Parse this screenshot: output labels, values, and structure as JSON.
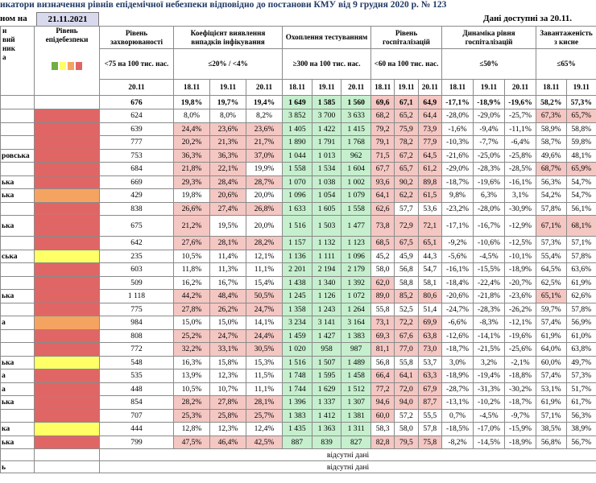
{
  "header": {
    "title": "икатори визначення рівнів епідемічної небезпеки відповідно до постанови КМУ від 9 грудня 2020 р. № 123",
    "date_label": "ном на",
    "date": "21.11.2021",
    "available": "Дані доступні за 20.11."
  },
  "table": {
    "region_header": [
      "и",
      "вий",
      "ник",
      "а"
    ],
    "level_header": "Рівень епідебезпеки",
    "level_legend_colors": [
      "#70ad47",
      "#ffff66",
      "#f4a460",
      "#e06666"
    ],
    "groups": [
      {
        "title": "Рівень захворюваності",
        "threshold": "<75 на 100 тис. нас.",
        "dates": [
          "20.11"
        ]
      },
      {
        "title": "Коефіцієнт виявлення випадків інфікування",
        "threshold": "≤20% / <4%",
        "dates": [
          "18.11",
          "19.11",
          "20.11"
        ],
        "limit": 20,
        "fail_color": "#f4c7c3"
      },
      {
        "title": "Охоплення тестуванням",
        "threshold": "≥300 на 100 тис. нас.",
        "dates": [
          "18.11",
          "19.11",
          "20.11"
        ],
        "limit": 300,
        "ok_color": "#c6efce"
      },
      {
        "title": "Рівень госпіталізацій",
        "threshold": "<60 на 100 тис. нас.",
        "dates": [
          "18.11",
          "19.11",
          "20.11"
        ],
        "limit": 60,
        "fail_color": "#f4c7c3"
      },
      {
        "title": "Динаміка рівня госпіталізацій",
        "threshold": "≤50%",
        "dates": [
          "18.11",
          "19.11",
          "20.11"
        ]
      },
      {
        "title": "Завантаженість з кисне",
        "threshold": "≤65%",
        "dates": [
          "18.11",
          "19.11"
        ],
        "limit": 65,
        "fail_color": "#f4c7c3"
      }
    ],
    "total": {
      "values": [
        "676",
        "19,8%",
        "19,7%",
        "19,4%",
        "1 649",
        "1 585",
        "1 560",
        "69,6",
        "67,1",
        "64,9",
        "-17,1%",
        "-18,9%",
        "-19,6%",
        "58,2%",
        "57,3%"
      ]
    },
    "rows": [
      {
        "level_color": "#e06666",
        "values": [
          "624",
          "8,0%",
          "8,0%",
          "8,2%",
          "3 852",
          "3 700",
          "3 633",
          "68,2",
          "65,2",
          "64,4",
          "-28,0%",
          "-29,0%",
          "-25,7%",
          "67,3%",
          "65,7%"
        ]
      },
      {
        "level_color": "#e06666",
        "values": [
          "639",
          "24,4%",
          "23,6%",
          "23,6%",
          "1 405",
          "1 422",
          "1 415",
          "79,2",
          "75,9",
          "73,9",
          "-1,6%",
          "-9,4%",
          "-11,1%",
          "58,9%",
          "58,8%"
        ]
      },
      {
        "level_color": "#e06666",
        "values": [
          "777",
          "20,2%",
          "21,3%",
          "21,7%",
          "1 890",
          "1 791",
          "1 768",
          "79,1",
          "78,2",
          "77,9",
          "-10,3%",
          "-7,7%",
          "-6,4%",
          "58,7%",
          "59,8%"
        ]
      },
      {
        "name": "ровська",
        "level_color": "#e06666",
        "values": [
          "753",
          "36,3%",
          "36,3%",
          "37,0%",
          "1 044",
          "1 013",
          "962",
          "71,5",
          "67,2",
          "64,5",
          "-21,6%",
          "-25,0%",
          "-25,8%",
          "49,6%",
          "48,1%"
        ]
      },
      {
        "level_color": "#e06666",
        "values": [
          "684",
          "21,8%",
          "22,1%",
          "19,9%",
          "1 558",
          "1 534",
          "1 604",
          "67,7",
          "65,7",
          "61,2",
          "-29,0%",
          "-28,3%",
          "-28,5%",
          "68,7%",
          "65,9%"
        ]
      },
      {
        "name": "ька",
        "level_color": "#e06666",
        "values": [
          "669",
          "29,3%",
          "28,4%",
          "28,7%",
          "1 070",
          "1 038",
          "1 002",
          "93,6",
          "90,2",
          "89,8",
          "-18,7%",
          "-19,6%",
          "-16,1%",
          "56,3%",
          "54,7%"
        ]
      },
      {
        "name": "ька",
        "level_color": "#f4a460",
        "values": [
          "429",
          "19,8%",
          "20,6%",
          "20,0%",
          "1 096",
          "1 054",
          "1 079",
          "64,1",
          "62,2",
          "61,5",
          "9,8%",
          "6,3%",
          "3,1%",
          "54,2%",
          "54,7%"
        ]
      },
      {
        "level_color": "#e06666",
        "values": [
          "838",
          "26,6%",
          "27,4%",
          "26,8%",
          "1 633",
          "1 605",
          "1 558",
          "62,6",
          "57,7",
          "53,6",
          "-23,2%",
          "-28,0%",
          "-30,9%",
          "57,8%",
          "56,1%"
        ]
      },
      {
        "name": "ька",
        "level_color": "#e06666",
        "values": [
          "675",
          "21,2%",
          "19,5%",
          "20,0%",
          "1 516",
          "1 503",
          "1 477",
          "73,8",
          "72,9",
          "72,1",
          "-17,1%",
          "-16,7%",
          "-12,9%",
          "67,1%",
          "68,1%"
        ]
      },
      {
        "level_color": "#e06666",
        "values": [
          "642",
          "27,6%",
          "28,1%",
          "28,2%",
          "1 157",
          "1 132",
          "1 123",
          "68,5",
          "67,5",
          "65,1",
          "-9,2%",
          "-10,6%",
          "-12,5%",
          "57,3%",
          "57,1%"
        ]
      },
      {
        "name": "ська",
        "level_color": "#ffff66",
        "values": [
          "235",
          "10,5%",
          "11,4%",
          "12,1%",
          "1 136",
          "1 111",
          "1 096",
          "45,2",
          "45,9",
          "44,3",
          "-5,6%",
          "-4,5%",
          "-10,1%",
          "55,4%",
          "57,8%"
        ]
      },
      {
        "level_color": "#e06666",
        "values": [
          "603",
          "11,8%",
          "11,3%",
          "11,1%",
          "2 201",
          "2 194",
          "2 179",
          "58,0",
          "56,8",
          "54,7",
          "-16,1%",
          "-15,5%",
          "-18,9%",
          "64,5%",
          "63,6%"
        ]
      },
      {
        "level_color": "#e06666",
        "values": [
          "509",
          "16,2%",
          "16,7%",
          "15,4%",
          "1 438",
          "1 340",
          "1 392",
          "62,0",
          "58,8",
          "58,1",
          "-18,4%",
          "-22,4%",
          "-20,7%",
          "62,5%",
          "61,9%"
        ]
      },
      {
        "name": "ька",
        "level_color": "#e06666",
        "values": [
          "1 118",
          "44,2%",
          "48,4%",
          "50,5%",
          "1 245",
          "1 126",
          "1 072",
          "89,0",
          "85,2",
          "80,6",
          "-20,6%",
          "-21,8%",
          "-23,6%",
          "65,1%",
          "62,6%"
        ]
      },
      {
        "level_color": "#e06666",
        "values": [
          "775",
          "27,8%",
          "26,2%",
          "24,7%",
          "1 358",
          "1 243",
          "1 264",
          "55,8",
          "52,5",
          "51,4",
          "-24,7%",
          "-28,3%",
          "-26,2%",
          "59,7%",
          "57,8%"
        ]
      },
      {
        "name": "а",
        "level_color": "#f4a460",
        "values": [
          "984",
          "15,0%",
          "15,0%",
          "14,1%",
          "3 234",
          "3 141",
          "3 164",
          "73,1",
          "72,2",
          "69,9",
          "-6,6%",
          "-8,3%",
          "-12,1%",
          "57,4%",
          "56,9%"
        ]
      },
      {
        "level_color": "#e06666",
        "values": [
          "808",
          "25,2%",
          "24,7%",
          "24,4%",
          "1 459",
          "1 427",
          "1 383",
          "69,3",
          "67,6",
          "63,8",
          "-12,6%",
          "-14,1%",
          "-19,6%",
          "61,9%",
          "61,0%"
        ]
      },
      {
        "level_color": "#e06666",
        "values": [
          "772",
          "32,2%",
          "33,1%",
          "30,5%",
          "1 020",
          "958",
          "987",
          "81,1",
          "77,0",
          "73,0",
          "-18,7%",
          "-21,5%",
          "-25,6%",
          "64,0%",
          "63,8%"
        ]
      },
      {
        "name": "ька",
        "level_color": "#ffff66",
        "values": [
          "548",
          "16,3%",
          "15,8%",
          "15,3%",
          "1 516",
          "1 507",
          "1 489",
          "56,8",
          "55,8",
          "53,7",
          "3,0%",
          "3,2%",
          "-2,1%",
          "60,0%",
          "49,7%"
        ]
      },
      {
        "name": "а",
        "level_color": "#e06666",
        "values": [
          "535",
          "13,9%",
          "12,3%",
          "11,5%",
          "1 748",
          "1 595",
          "1 458",
          "66,4",
          "64,1",
          "63,3",
          "-18,9%",
          "-19,4%",
          "-18,8%",
          "57,4%",
          "57,3%"
        ]
      },
      {
        "name": "а",
        "level_color": "#e06666",
        "values": [
          "448",
          "10,5%",
          "10,7%",
          "11,1%",
          "1 744",
          "1 629",
          "1 512",
          "77,2",
          "72,0",
          "67,9",
          "-28,7%",
          "-31,3%",
          "-30,2%",
          "53,1%",
          "51,7%"
        ]
      },
      {
        "name": "ька",
        "level_color": "#e06666",
        "values": [
          "854",
          "28,2%",
          "27,8%",
          "28,1%",
          "1 396",
          "1 337",
          "1 307",
          "94,6",
          "94,0",
          "87,7",
          "-13,1%",
          "-10,2%",
          "-18,7%",
          "61,9%",
          "61,7%"
        ]
      },
      {
        "level_color": "#e06666",
        "values": [
          "707",
          "25,3%",
          "25,8%",
          "25,7%",
          "1 383",
          "1 412",
          "1 381",
          "60,0",
          "57,2",
          "55,5",
          "0,7%",
          "-4,5%",
          "-9,7%",
          "57,1%",
          "56,3%"
        ]
      },
      {
        "name": "ка",
        "level_color": "#ffff66",
        "values": [
          "444",
          "12,8%",
          "12,3%",
          "12,4%",
          "1 435",
          "1 363",
          "1 311",
          "58,3",
          "58,0",
          "57,8",
          "-18,5%",
          "-17,0%",
          "-15,9%",
          "38,5%",
          "38,9%"
        ]
      },
      {
        "name": "ька",
        "level_color": "#e06666",
        "values": [
          "799",
          "47,5%",
          "46,4%",
          "42,5%",
          "887",
          "839",
          "827",
          "82,8",
          "79,5",
          "75,8",
          "-8,2%",
          "-14,5%",
          "-18,9%",
          "56,8%",
          "56,7%"
        ]
      }
    ],
    "missing_rows": [
      {
        "text": "відсутні дані"
      },
      {
        "name": "ь",
        "text": "відсутні дані"
      }
    ]
  }
}
